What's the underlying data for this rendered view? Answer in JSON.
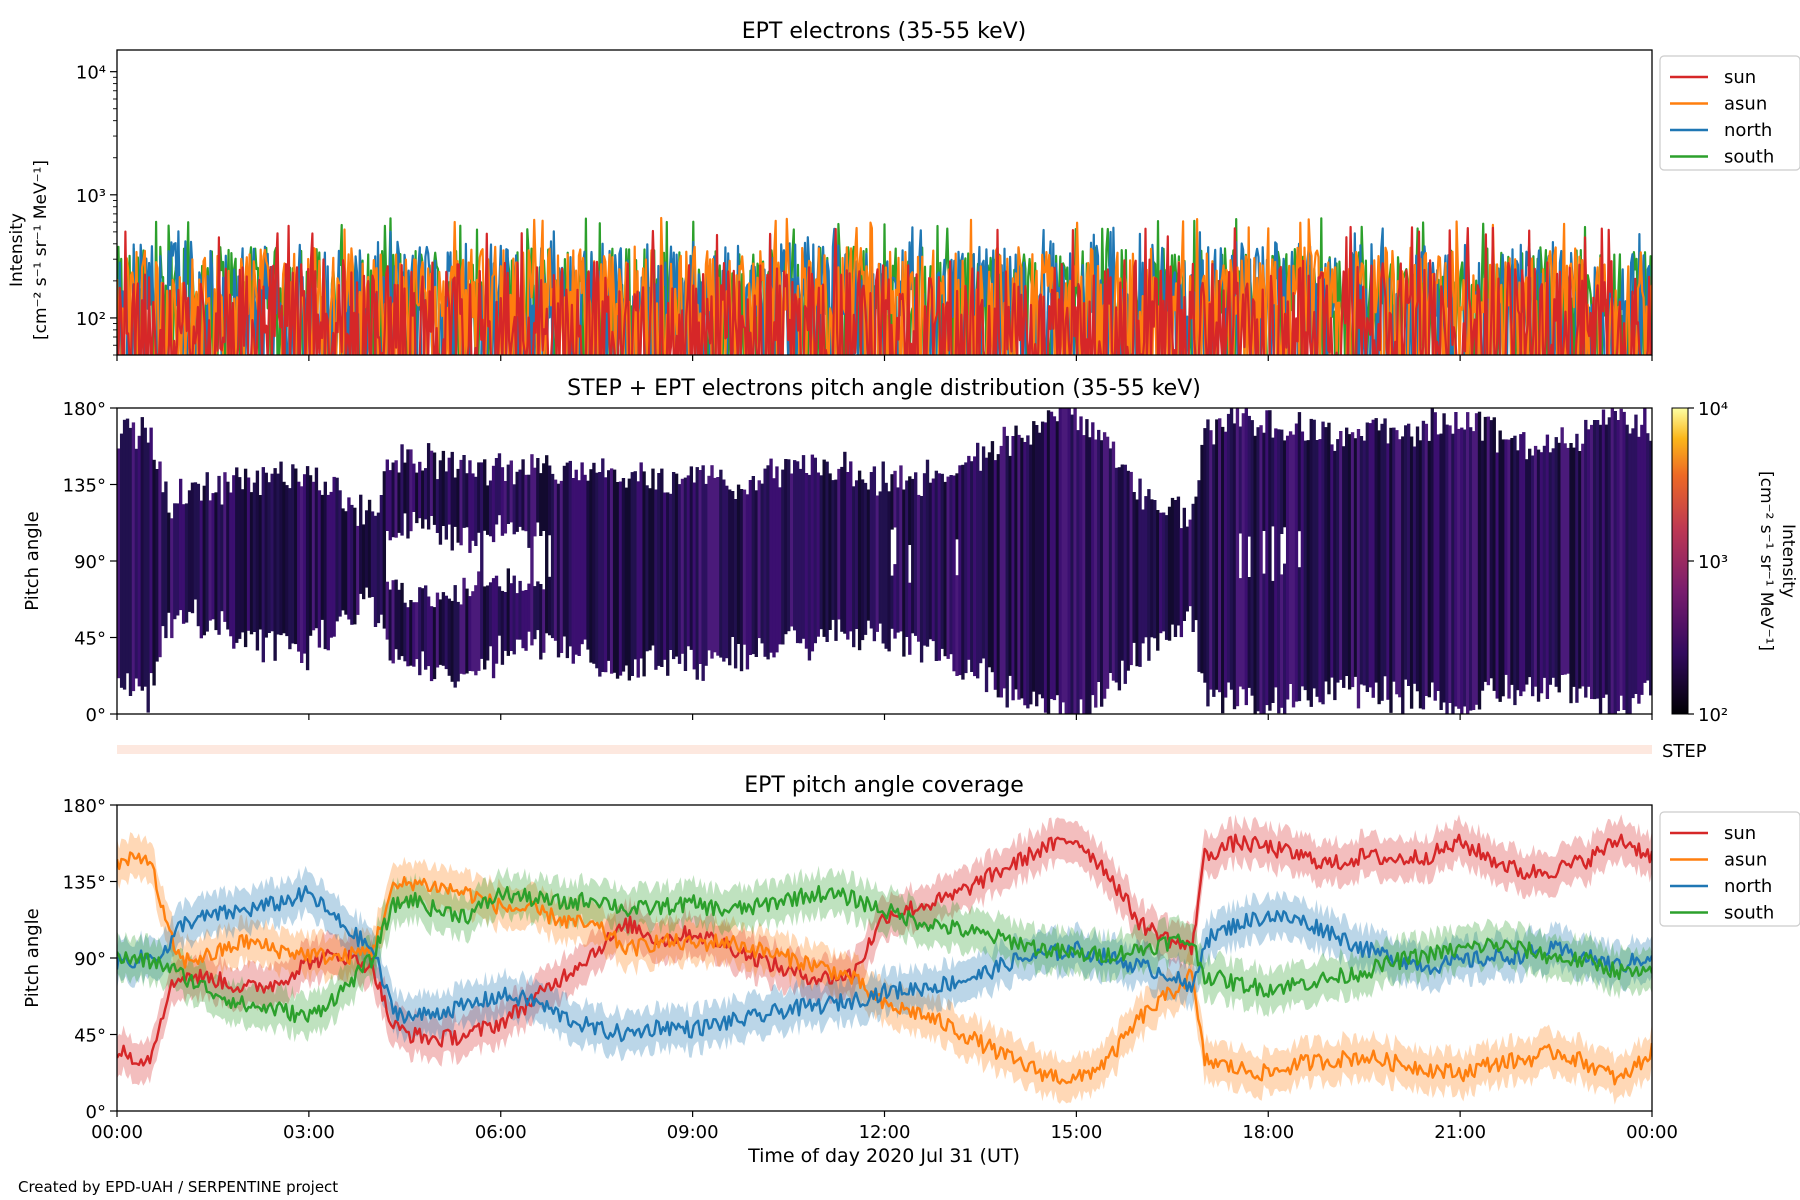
{
  "credit": "Created by EPD-UAH / SERPENTINE project",
  "xlabel": "Time of day 2020 Jul 31 (UT)",
  "time_ticks": [
    "00:00",
    "03:00",
    "06:00",
    "09:00",
    "12:00",
    "15:00",
    "18:00",
    "21:00",
    "00:00"
  ],
  "colors": {
    "sun": "#d62728",
    "asun": "#ff7f0e",
    "north": "#1f77b4",
    "south": "#2ca02c"
  },
  "chart_data": [
    {
      "type": "line",
      "title": "EPT electrons (35-55 keV)",
      "ylabel_line1": "Intensity",
      "ylabel_line2": "[cm⁻² s⁻¹ sr⁻¹ MeV⁻¹]",
      "yscale": "log",
      "ylim": [
        50,
        15000
      ],
      "y_tick_labels": [
        "10²",
        "10³",
        "10⁴"
      ],
      "x_unit": "hours",
      "x_range": [
        0,
        24
      ],
      "legend": [
        "sun",
        "asun",
        "north",
        "south"
      ],
      "legend_position": "outside right, top",
      "series": [
        {
          "name": "sun",
          "typical_range": [
            50,
            300
          ],
          "spike_max": 560
        },
        {
          "name": "asun",
          "typical_range": [
            100,
            380
          ],
          "spike_max": 650
        },
        {
          "name": "north",
          "typical_range": [
            100,
            420
          ],
          "spike_max": 560
        },
        {
          "name": "south",
          "typical_range": [
            100,
            380
          ],
          "spike_max": 650
        }
      ]
    },
    {
      "type": "heatmap",
      "title": "STEP + EPT electrons pitch angle distribution (35-55 keV)",
      "ylabel": "Pitch angle",
      "y_tick_labels": [
        "0°",
        "45°",
        "90°",
        "135°",
        "180°"
      ],
      "ylim": [
        0,
        180
      ],
      "colorbar": {
        "label_line1": "Intensity",
        "label_line2": "[cm⁻² s⁻¹ sr⁻¹ MeV⁻¹]",
        "scale": "log",
        "range": [
          100,
          10000
        ],
        "tick_labels": [
          "10²",
          "10³",
          "10⁴"
        ]
      },
      "typical_intensity": 180
    },
    {
      "type": "bar",
      "title": "",
      "label": "STEP"
    },
    {
      "type": "line",
      "title": "EPT pitch angle coverage",
      "ylabel": "Pitch angle",
      "y_tick_labels": [
        "0°",
        "45°",
        "90°",
        "135°",
        "180°"
      ],
      "ylim": [
        0,
        180
      ],
      "legend": [
        "sun",
        "asun",
        "north",
        "south"
      ],
      "legend_position": "outside right, top",
      "x_unit": "hours",
      "series": [
        {
          "name": "sun",
          "t": [
            0,
            0.5,
            0.8,
            1,
            1.5,
            2,
            2.5,
            3,
            3.5,
            4,
            4.3,
            4.6,
            5,
            5.5,
            6,
            6.5,
            7,
            7.5,
            8,
            8.5,
            9,
            9.5,
            10,
            10.5,
            11,
            11.5,
            12,
            12.5,
            13,
            13.5,
            14,
            14.5,
            15,
            15.5,
            16,
            16.5,
            16.8,
            17,
            17.5,
            18,
            18.5,
            19,
            19.5,
            20,
            20.5,
            21,
            21.5,
            22,
            22.5,
            23,
            23.5,
            24
          ],
          "values": [
            35,
            30,
            70,
            80,
            78,
            72,
            75,
            88,
            92,
            85,
            50,
            45,
            42,
            45,
            52,
            65,
            80,
            95,
            110,
            100,
            105,
            98,
            90,
            82,
            78,
            80,
            115,
            120,
            125,
            135,
            145,
            155,
            160,
            140,
            110,
            100,
            95,
            150,
            158,
            155,
            150,
            145,
            150,
            148,
            150,
            158,
            148,
            140,
            142,
            148,
            160,
            150
          ]
        },
        {
          "name": "asun",
          "t": [
            0,
            0.5,
            0.8,
            1,
            1.5,
            2,
            2.5,
            3,
            3.5,
            4,
            4.3,
            4.6,
            5,
            5.5,
            6,
            6.5,
            7,
            7.5,
            8,
            8.5,
            9,
            9.5,
            10,
            10.5,
            11,
            11.5,
            12,
            12.5,
            13,
            13.5,
            14,
            14.5,
            15,
            15.5,
            16,
            16.5,
            16.8,
            17,
            17.5,
            18,
            18.5,
            19,
            19.5,
            20,
            20.5,
            21,
            21.5,
            22,
            22.5,
            23,
            23.5,
            24
          ],
          "values": [
            145,
            150,
            105,
            88,
            92,
            100,
            95,
            92,
            90,
            95,
            130,
            135,
            132,
            128,
            120,
            118,
            112,
            108,
            95,
            100,
            98,
            100,
            95,
            90,
            85,
            78,
            62,
            58,
            50,
            40,
            30,
            22,
            18,
            30,
            55,
            70,
            80,
            30,
            25,
            22,
            28,
            30,
            32,
            28,
            25,
            22,
            28,
            30,
            35,
            28,
            18,
            35
          ]
        },
        {
          "name": "north",
          "t": [
            0,
            0.5,
            0.8,
            1,
            1.5,
            2,
            2.5,
            3,
            3.5,
            4,
            4.3,
            4.6,
            5,
            5.5,
            6,
            6.5,
            7,
            7.5,
            8,
            8.5,
            9,
            9.5,
            10,
            10.5,
            11,
            11.5,
            12,
            12.5,
            13,
            13.5,
            14,
            14.5,
            15,
            15.5,
            16,
            16.5,
            16.8,
            17,
            17.5,
            18,
            18.5,
            19,
            19.5,
            20,
            20.5,
            21,
            21.5,
            22,
            22.5,
            23,
            23.5,
            24
          ],
          "values": [
            88,
            90,
            95,
            110,
            115,
            118,
            122,
            128,
            110,
            95,
            60,
            55,
            58,
            62,
            68,
            65,
            55,
            48,
            45,
            50,
            48,
            52,
            55,
            60,
            62,
            65,
            70,
            72,
            75,
            80,
            88,
            92,
            95,
            90,
            85,
            80,
            70,
            100,
            110,
            115,
            112,
            105,
            95,
            90,
            85,
            88,
            90,
            92,
            95,
            90,
            85,
            92
          ]
        },
        {
          "name": "south",
          "t": [
            0,
            0.5,
            0.8,
            1,
            1.5,
            2,
            2.5,
            3,
            3.5,
            4,
            4.3,
            4.6,
            5,
            5.5,
            6,
            6.5,
            7,
            7.5,
            8,
            8.5,
            9,
            9.5,
            10,
            10.5,
            11,
            11.5,
            12,
            12.5,
            13,
            13.5,
            14,
            14.5,
            15,
            15.5,
            16,
            16.5,
            16.8,
            17,
            17.5,
            18,
            18.5,
            19,
            19.5,
            20,
            20.5,
            21,
            21.5,
            22,
            22.5,
            23,
            23.5,
            24
          ],
          "values": [
            90,
            88,
            85,
            80,
            70,
            62,
            60,
            55,
            70,
            90,
            120,
            125,
            118,
            115,
            128,
            125,
            122,
            125,
            118,
            120,
            122,
            118,
            120,
            125,
            128,
            125,
            118,
            112,
            108,
            104,
            100,
            95,
            92,
            92,
            95,
            100,
            100,
            80,
            75,
            72,
            75,
            78,
            82,
            88,
            92,
            95,
            98,
            95,
            90,
            88,
            82,
            80
          ]
        }
      ],
      "band_halfwidth_deg": 12
    }
  ]
}
